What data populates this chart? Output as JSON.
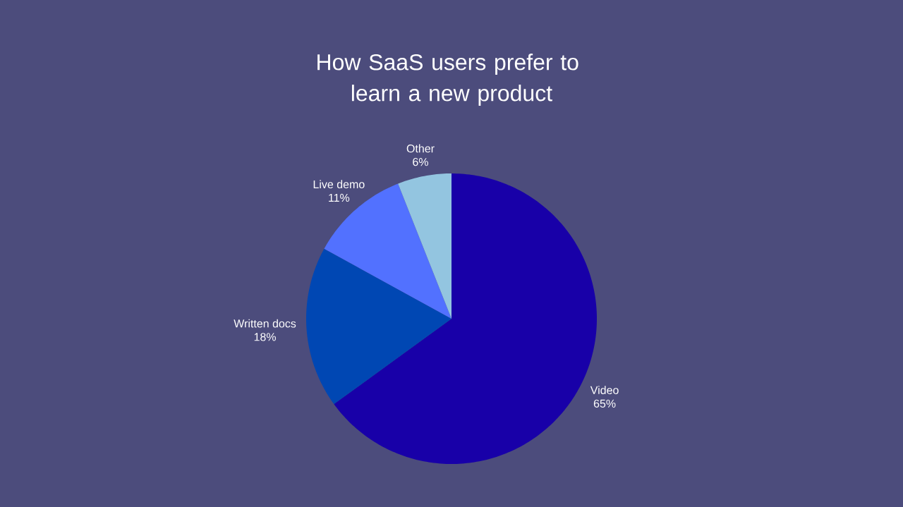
{
  "chart_data": {
    "type": "pie",
    "title": "How SaaS users prefer to learn a new product",
    "categories": [
      "Video",
      "Written docs",
      "Live demo",
      "Other"
    ],
    "values": [
      65,
      18,
      11,
      6
    ],
    "colors": [
      "#1800a8",
      "#0047b3",
      "#5271ff",
      "#93c5e0"
    ],
    "value_labels": [
      "65%",
      "18%",
      "11%",
      "6%"
    ]
  }
}
